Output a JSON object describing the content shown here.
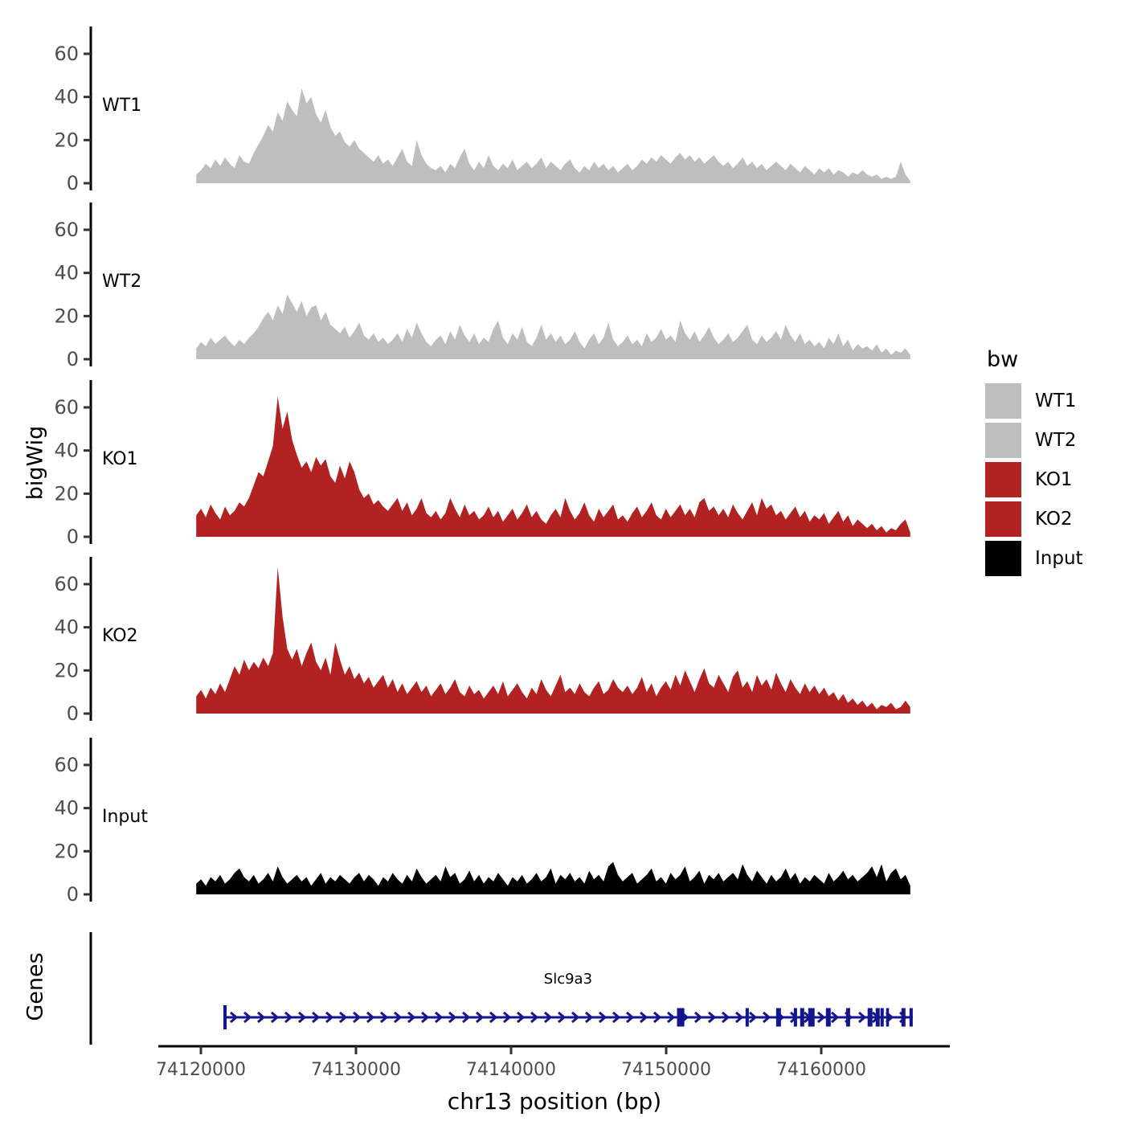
{
  "y_axis_label": "bigWig",
  "genes_axis_label": "Genes",
  "x_axis": {
    "title": "chr13 position (bp)",
    "ticks": [
      74120000,
      74130000,
      74140000,
      74150000,
      74160000
    ],
    "tick_labels": [
      "74120000",
      "74130000",
      "74140000",
      "74150000",
      "74160000"
    ]
  },
  "legend": {
    "title": "bw",
    "entries": [
      {
        "label": "WT1",
        "color": "#BEBEBE"
      },
      {
        "label": "WT2",
        "color": "#BEBEBE"
      },
      {
        "label": "KO1",
        "color": "#B22222"
      },
      {
        "label": "KO2",
        "color": "#B22222"
      },
      {
        "label": "Input",
        "color": "#000000"
      }
    ]
  },
  "colors": {
    "wt": "#BEBEBE",
    "ko": "#B22222",
    "input": "#000000",
    "gene": "#14148C",
    "tick_text": "#4D4D4D",
    "axis_line": "#000000"
  },
  "chart_data": {
    "type": "area",
    "title": "",
    "xlabel": "chr13 position (bp)",
    "ylabel": "bigWig",
    "ylim": [
      0,
      70
    ],
    "y_ticks": [
      0,
      20,
      40,
      60
    ],
    "x_ticks_bp": [
      74120000,
      74130000,
      74140000,
      74150000,
      74160000
    ],
    "panel_bp_range": [
      74113000,
      74168200
    ],
    "x_start_bp": 74119700,
    "x_step_bp": 309,
    "legend_position": "right",
    "grid": false,
    "series": [
      {
        "name": "WT1",
        "color": "#BEBEBE",
        "values": [
          4,
          6,
          9,
          7,
          11,
          8,
          12,
          9,
          7,
          13,
          10,
          9,
          14,
          18,
          22,
          27,
          24,
          33,
          29,
          38,
          34,
          31,
          44,
          37,
          40,
          32,
          28,
          34,
          26,
          22,
          24,
          19,
          17,
          20,
          16,
          14,
          12,
          10,
          13,
          9,
          11,
          8,
          12,
          16,
          10,
          8,
          20,
          13,
          9,
          7,
          6,
          8,
          5,
          9,
          7,
          12,
          16,
          9,
          6,
          10,
          7,
          13,
          8,
          6,
          9,
          7,
          11,
          6,
          8,
          10,
          7,
          9,
          12,
          7,
          10,
          8,
          6,
          9,
          11,
          7,
          5,
          8,
          6,
          10,
          7,
          9,
          6,
          8,
          5,
          7,
          9,
          6,
          8,
          11,
          9,
          12,
          10,
          13,
          11,
          9,
          12,
          14,
          11,
          13,
          10,
          12,
          9,
          11,
          13,
          10,
          8,
          10,
          7,
          9,
          12,
          8,
          10,
          7,
          9,
          6,
          8,
          10,
          8,
          6,
          9,
          7,
          5,
          8,
          6,
          4,
          7,
          5,
          7,
          4,
          6,
          5,
          3,
          5,
          4,
          6,
          4,
          3,
          4,
          2,
          3,
          2,
          3,
          10,
          4,
          1
        ]
      },
      {
        "name": "WT2",
        "color": "#BEBEBE",
        "values": [
          5,
          8,
          6,
          10,
          7,
          9,
          11,
          8,
          6,
          9,
          7,
          10,
          12,
          15,
          19,
          22,
          18,
          25,
          21,
          30,
          26,
          22,
          27,
          20,
          24,
          25,
          18,
          22,
          16,
          14,
          12,
          15,
          10,
          13,
          17,
          11,
          9,
          12,
          8,
          10,
          7,
          9,
          12,
          8,
          14,
          10,
          17,
          12,
          8,
          6,
          9,
          11,
          7,
          13,
          9,
          16,
          11,
          8,
          12,
          7,
          10,
          8,
          14,
          18,
          10,
          7,
          12,
          9,
          15,
          8,
          6,
          10,
          16,
          9,
          12,
          8,
          11,
          7,
          9,
          13,
          8,
          5,
          9,
          12,
          7,
          10,
          17,
          9,
          6,
          8,
          11,
          7,
          9,
          6,
          12,
          8,
          10,
          14,
          9,
          11,
          8,
          18,
          12,
          9,
          13,
          8,
          11,
          15,
          10,
          7,
          9,
          12,
          8,
          10,
          13,
          16,
          9,
          7,
          11,
          8,
          10,
          13,
          9,
          16,
          11,
          8,
          12,
          7,
          9,
          6,
          8,
          5,
          10,
          7,
          12,
          6,
          9,
          4,
          7,
          5,
          6,
          4,
          7,
          3,
          5,
          2,
          4,
          3,
          5,
          2
        ]
      },
      {
        "name": "KO1",
        "color": "#B22222",
        "values": [
          10,
          13,
          9,
          15,
          11,
          8,
          14,
          10,
          12,
          16,
          14,
          18,
          24,
          30,
          28,
          35,
          42,
          65,
          50,
          58,
          45,
          38,
          32,
          35,
          30,
          37,
          33,
          36,
          28,
          25,
          33,
          27,
          35,
          30,
          22,
          18,
          20,
          15,
          17,
          14,
          12,
          15,
          18,
          12,
          16,
          10,
          13,
          18,
          11,
          9,
          12,
          8,
          11,
          18,
          13,
          9,
          15,
          10,
          12,
          8,
          10,
          14,
          9,
          12,
          7,
          10,
          13,
          8,
          11,
          15,
          9,
          12,
          8,
          6,
          10,
          13,
          9,
          18,
          12,
          8,
          11,
          16,
          10,
          7,
          13,
          9,
          12,
          15,
          8,
          10,
          7,
          11,
          14,
          9,
          12,
          16,
          10,
          8,
          13,
          9,
          12,
          15,
          10,
          13,
          9,
          16,
          18,
          12,
          14,
          10,
          13,
          9,
          15,
          11,
          8,
          12,
          16,
          10,
          18,
          13,
          15,
          10,
          12,
          8,
          11,
          14,
          9,
          12,
          7,
          10,
          8,
          11,
          6,
          9,
          12,
          7,
          10,
          5,
          8,
          6,
          4,
          6,
          3,
          5,
          2,
          4,
          3,
          6,
          8,
          2
        ]
      },
      {
        "name": "KO2",
        "color": "#B22222",
        "values": [
          8,
          11,
          7,
          12,
          9,
          14,
          10,
          16,
          22,
          18,
          25,
          20,
          24,
          21,
          26,
          22,
          28,
          68,
          45,
          30,
          25,
          30,
          22,
          28,
          33,
          24,
          20,
          26,
          18,
          33,
          25,
          18,
          22,
          16,
          19,
          14,
          17,
          12,
          15,
          18,
          12,
          16,
          10,
          14,
          9,
          12,
          15,
          10,
          13,
          8,
          11,
          14,
          9,
          12,
          16,
          10,
          8,
          13,
          9,
          11,
          7,
          10,
          13,
          9,
          15,
          8,
          11,
          14,
          10,
          7,
          12,
          9,
          16,
          11,
          8,
          13,
          18,
          10,
          12,
          9,
          14,
          10,
          8,
          12,
          15,
          9,
          11,
          16,
          12,
          10,
          13,
          9,
          12,
          17,
          10,
          14,
          8,
          12,
          15,
          11,
          18,
          13,
          20,
          15,
          10,
          16,
          21,
          14,
          12,
          18,
          14,
          10,
          17,
          20,
          12,
          15,
          10,
          18,
          13,
          16,
          11,
          19,
          14,
          10,
          16,
          12,
          9,
          14,
          10,
          13,
          9,
          12,
          8,
          10,
          6,
          9,
          5,
          7,
          4,
          6,
          3,
          5,
          2,
          4,
          3,
          5,
          2,
          3,
          6,
          3
        ]
      },
      {
        "name": "Input",
        "color": "#000000",
        "values": [
          5,
          7,
          4,
          8,
          6,
          9,
          5,
          7,
          10,
          12,
          8,
          6,
          9,
          5,
          7,
          10,
          6,
          13,
          8,
          5,
          7,
          9,
          6,
          8,
          4,
          7,
          10,
          5,
          8,
          6,
          9,
          7,
          5,
          8,
          10,
          6,
          9,
          7,
          4,
          8,
          6,
          10,
          7,
          5,
          9,
          6,
          12,
          8,
          5,
          7,
          9,
          6,
          13,
          8,
          10,
          5,
          7,
          11,
          6,
          9,
          5,
          8,
          6,
          10,
          7,
          4,
          8,
          6,
          9,
          5,
          7,
          10,
          6,
          8,
          12,
          5,
          9,
          7,
          10,
          6,
          8,
          5,
          11,
          7,
          9,
          6,
          13,
          15,
          9,
          6,
          8,
          10,
          5,
          7,
          9,
          12,
          6,
          8,
          5,
          10,
          7,
          9,
          13,
          6,
          8,
          11,
          5,
          9,
          7,
          10,
          6,
          8,
          10,
          7,
          14,
          9,
          6,
          11,
          8,
          5,
          9,
          6,
          8,
          12,
          7,
          10,
          5,
          8,
          6,
          9,
          7,
          5,
          10,
          6,
          8,
          11,
          7,
          9,
          6,
          8,
          10,
          13,
          8,
          14,
          6,
          10,
          12,
          7,
          9,
          4
        ]
      }
    ],
    "gene_track": {
      "gene": {
        "name": "Slc9a3",
        "strand": "+",
        "start_bp": 74121450,
        "end_bp": 74165900,
        "exons": [
          {
            "s": 74121450,
            "e": 74121660,
            "tall": true
          },
          {
            "s": 74150700,
            "e": 74151170
          },
          {
            "s": 74155120,
            "e": 74155330
          },
          {
            "s": 74157090,
            "e": 74157400
          },
          {
            "s": 74158230,
            "e": 74158440
          },
          {
            "s": 74158640,
            "e": 74158900
          },
          {
            "s": 74159160,
            "e": 74159570
          },
          {
            "s": 74160300,
            "e": 74160610
          },
          {
            "s": 74161600,
            "e": 74161860
          },
          {
            "s": 74162990,
            "e": 74163300
          },
          {
            "s": 74163510,
            "e": 74163770
          },
          {
            "s": 74163820,
            "e": 74164030
          },
          {
            "s": 74164185,
            "e": 74164290
          },
          {
            "s": 74165170,
            "e": 74165430
          },
          {
            "s": 74165690,
            "e": 74165900
          }
        ]
      }
    }
  }
}
